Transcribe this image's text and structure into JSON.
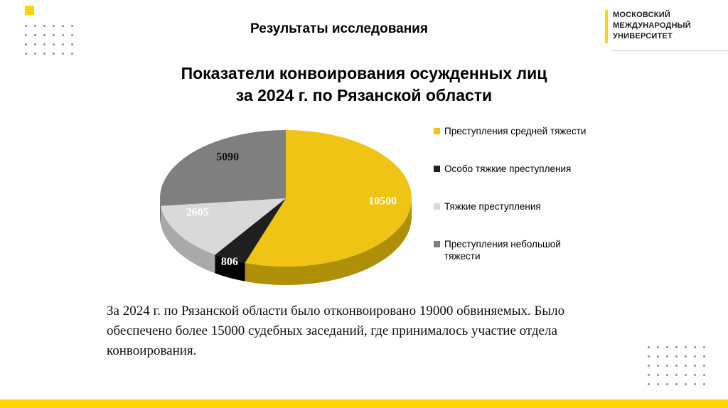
{
  "slide": {
    "header_title": "Результаты исследования",
    "accent_color": "#FFD400",
    "logo": {
      "line1": "МОСКОВСКИЙ",
      "line2": "МЕЖДУНАРОДНЫЙ",
      "line3": "УНИВЕРСИТЕТ"
    },
    "body_text": "За 2024 г. по Рязанской области было отконвоировано 19000 обвиняемых. Было обеспечено более 15000 судебных заседаний, где принималось участие отдела конвоирования."
  },
  "chart_data": {
    "type": "pie",
    "style": "3d",
    "title": "Показатели конвоирования осужденных лиц за 2024 г. по Рязанской области",
    "legend_position": "right",
    "slices": [
      {
        "label": "Преступления средней тяжести",
        "value": 10500,
        "color": "#EFC414"
      },
      {
        "label": "Особо тяжкие преступления",
        "value": 806,
        "color": "#1F1F1F"
      },
      {
        "label": "Тяжкие преступления",
        "value": 2605,
        "color": "#D9D9D9"
      },
      {
        "label": "Преступления небольшой тяжести",
        "value": 5090,
        "color": "#7F7F7F"
      }
    ]
  }
}
